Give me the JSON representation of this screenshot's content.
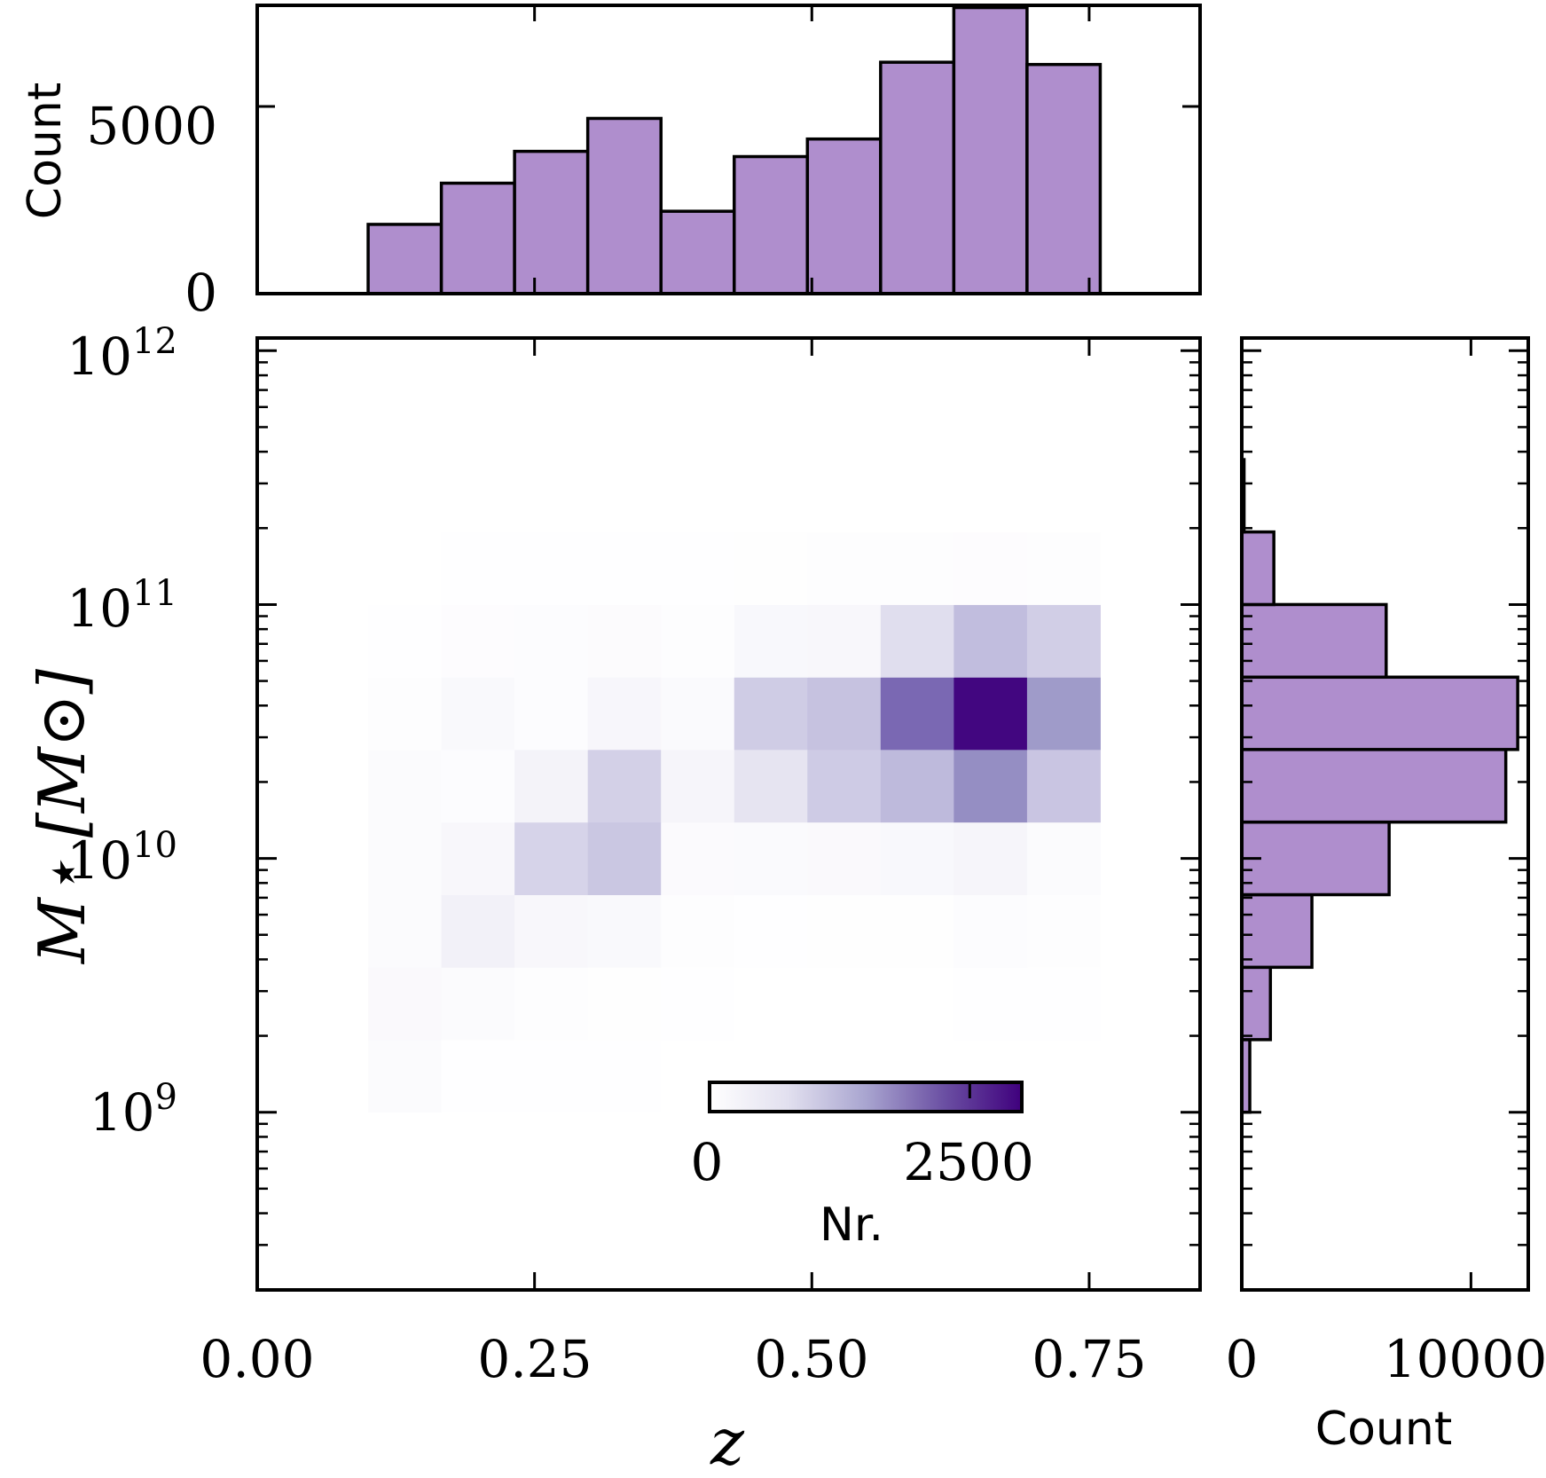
{
  "colors": {
    "bar_fill": "#af8ecd",
    "cmap_low": "#ffffff",
    "cmap_mid": "#9e9ac8",
    "cmap_high": "#3f007d"
  },
  "chart_data": {
    "type": "joint-histogram",
    "main": {
      "type": "heatmap",
      "xlabel": "z",
      "ylabel": "M⋆ [M⊙]",
      "xlim": [
        0.0,
        0.85
      ],
      "ylim_log10": [
        8.3,
        12.05
      ],
      "xticks": [
        "0.00",
        "0.25",
        "0.50",
        "0.75"
      ],
      "xtick_values": [
        0.0,
        0.25,
        0.5,
        0.75
      ],
      "yticks": [
        "10",
        "10",
        "10",
        "10"
      ],
      "ytick_exponents": [
        "9",
        "10",
        "11",
        "12"
      ],
      "ytick_values": [
        9,
        10,
        11,
        12
      ],
      "z_edges": [
        0.1,
        0.166,
        0.232,
        0.298,
        0.364,
        0.43,
        0.496,
        0.562,
        0.628,
        0.694,
        0.76
      ],
      "logm_edges": [
        9.0,
        9.286,
        9.571,
        9.857,
        10.143,
        10.429,
        10.714,
        11.0,
        11.286,
        11.571,
        11.857
      ],
      "counts": [
        [
          160,
          40,
          30,
          30,
          20,
          15,
          20,
          10,
          10,
          10
        ],
        [
          230,
          170,
          100,
          60,
          25,
          20,
          20,
          20,
          40,
          40
        ],
        [
          180,
          450,
          330,
          260,
          70,
          40,
          50,
          60,
          120,
          100
        ],
        [
          160,
          320,
          950,
          1150,
          200,
          220,
          240,
          300,
          380,
          180
        ],
        [
          160,
          120,
          420,
          1000,
          380,
          680,
          1080,
          1350,
          1900,
          1170
        ],
        [
          90,
          250,
          120,
          350,
          220,
          1070,
          1220,
          2200,
          2950,
          1780
        ],
        [
          40,
          110,
          130,
          150,
          100,
          300,
          330,
          780,
          1300,
          1030
        ],
        [
          20,
          30,
          40,
          40,
          40,
          50,
          70,
          80,
          110,
          70
        ],
        [
          10,
          10,
          15,
          15,
          10,
          20,
          20,
          20,
          10,
          20
        ],
        [
          0,
          0,
          0,
          0,
          0,
          0,
          10,
          10,
          0,
          10
        ]
      ],
      "colorbar": {
        "label": "Nr.",
        "range": [
          0,
          3000
        ],
        "tick_labels": [
          "0",
          "2500"
        ],
        "tick_values": [
          0,
          2500
        ]
      }
    },
    "top": {
      "type": "bar",
      "ylabel": "Count",
      "ylim": [
        0,
        7700
      ],
      "yticks": [
        "0",
        "5000"
      ],
      "ytick_values": [
        0,
        5000
      ],
      "bin_edges": [
        0.1,
        0.166,
        0.232,
        0.298,
        0.364,
        0.43,
        0.496,
        0.562,
        0.628,
        0.694,
        0.76
      ],
      "values": [
        1850,
        2950,
        3800,
        4680,
        2200,
        3660,
        4130,
        6180,
        7640,
        6120
      ]
    },
    "right": {
      "type": "barh",
      "xlabel": "Count",
      "xlim": [
        0,
        12500
      ],
      "xticks": [
        "0",
        "10000"
      ],
      "xtick_values": [
        0,
        10000
      ],
      "bin_edges_log10": [
        9.0,
        9.286,
        9.571,
        9.857,
        10.143,
        10.429,
        10.714,
        11.0,
        11.286,
        11.571,
        11.857
      ],
      "values": [
        350,
        1250,
        3060,
        6430,
        11520,
        12040,
        6300,
        1400,
        100,
        0
      ]
    }
  }
}
